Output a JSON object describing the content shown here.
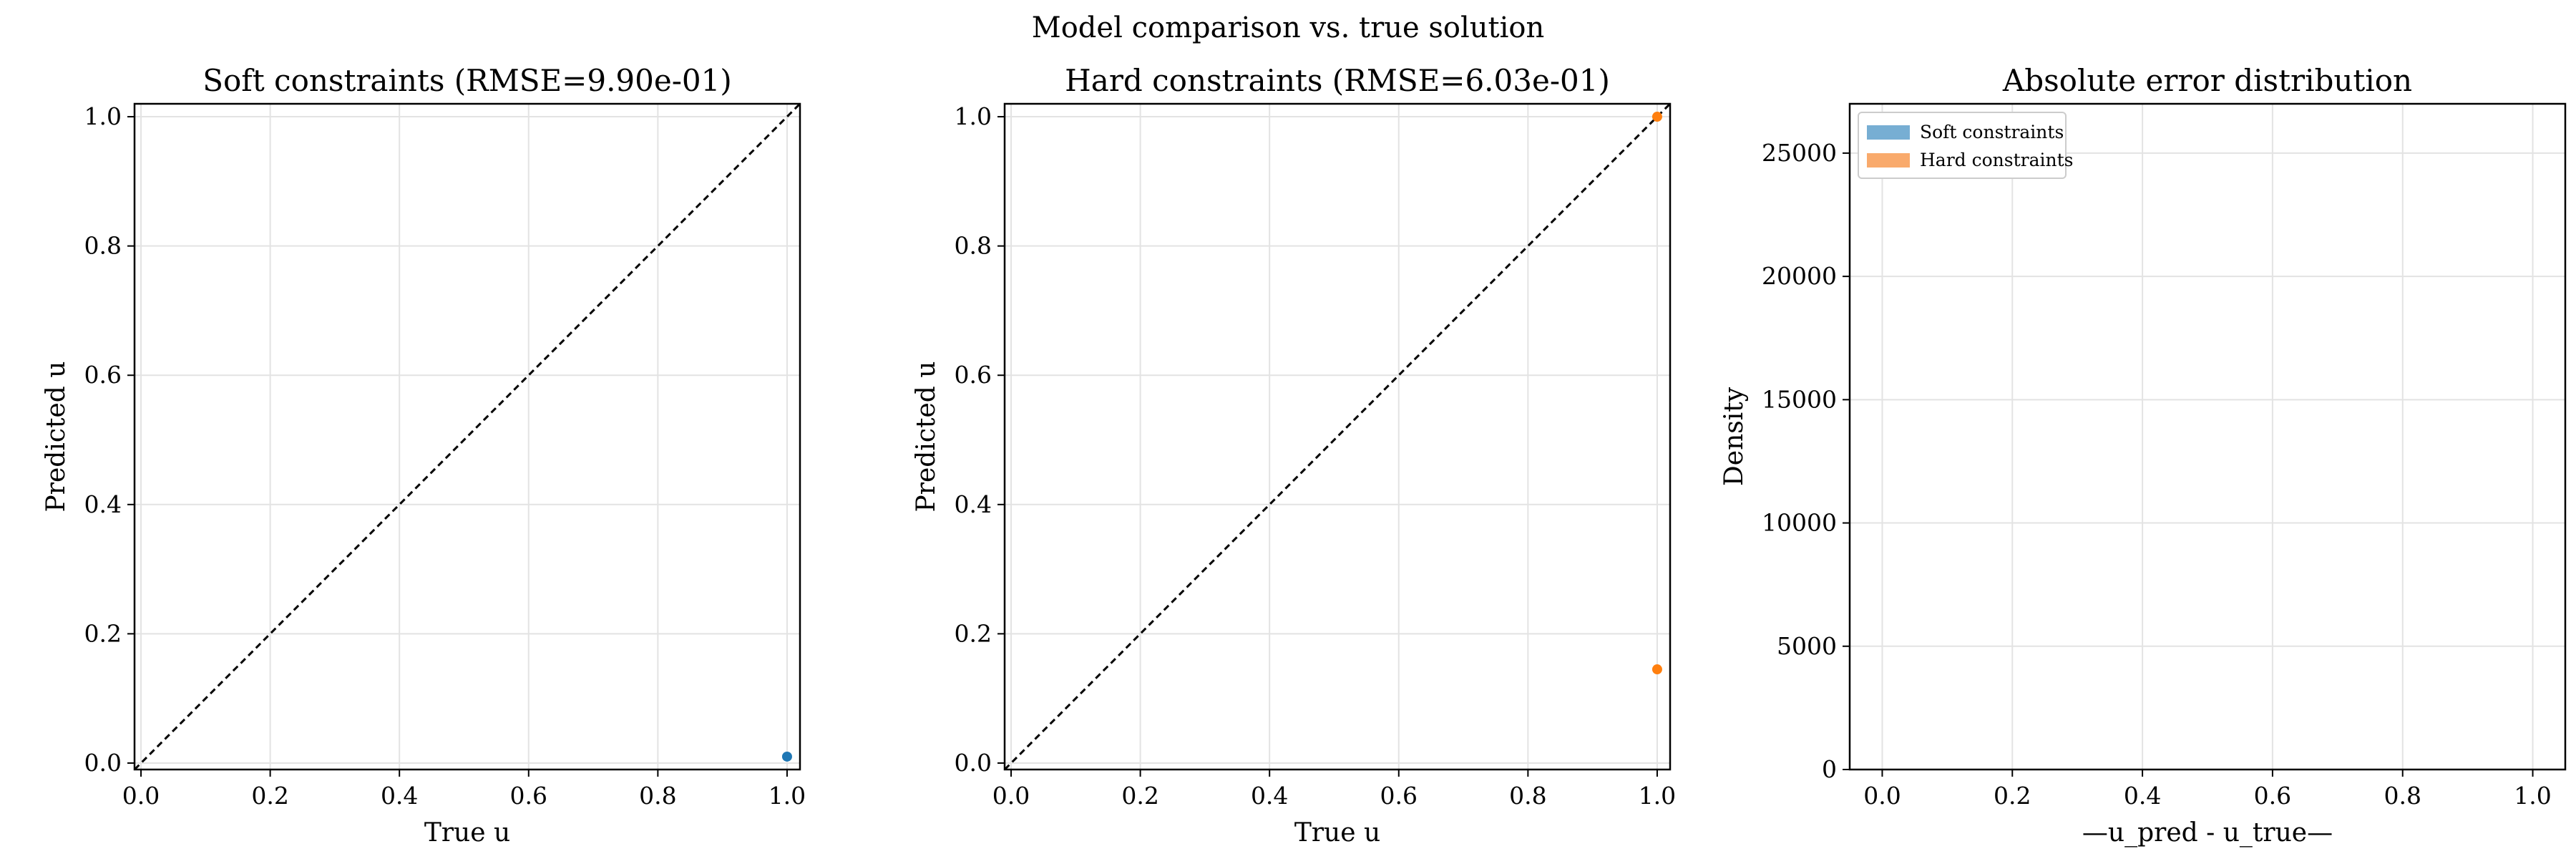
{
  "figure": {
    "suptitle": "Model comparison vs. true solution"
  },
  "chart_data": [
    {
      "type": "scatter",
      "title": "Soft constraints (RMSE=9.90e-01)",
      "xlabel": "True u",
      "ylabel": "Predicted u",
      "xlim": [
        -0.01,
        1.02
      ],
      "ylim": [
        -0.01,
        1.02
      ],
      "xticks": [
        "0.0",
        "0.2",
        "0.4",
        "0.6",
        "0.8",
        "1.0"
      ],
      "yticks": [
        "0.0",
        "0.2",
        "0.4",
        "0.6",
        "0.8",
        "1.0"
      ],
      "grid": true,
      "reference_line": "identity",
      "series": [
        {
          "color": "#1f77b4",
          "points": [
            [
              1.0,
              0.01
            ]
          ]
        }
      ]
    },
    {
      "type": "scatter",
      "title": "Hard constraints (RMSE=6.03e-01)",
      "xlabel": "True u",
      "ylabel": "Predicted u",
      "xlim": [
        -0.01,
        1.02
      ],
      "ylim": [
        -0.01,
        1.02
      ],
      "xticks": [
        "0.0",
        "0.2",
        "0.4",
        "0.6",
        "0.8",
        "1.0"
      ],
      "yticks": [
        "0.0",
        "0.2",
        "0.4",
        "0.6",
        "0.8",
        "1.0"
      ],
      "grid": true,
      "reference_line": "identity",
      "series": [
        {
          "color": "#ff7f0e",
          "points": [
            [
              1.0,
              1.0
            ],
            [
              1.0,
              0.145
            ]
          ]
        }
      ]
    },
    {
      "type": "bar",
      "subtype": "histogram",
      "title": "Absolute error distribution",
      "xlabel": "—u_pred - u_true—",
      "ylabel": "Density",
      "xlim": [
        -0.05,
        1.05
      ],
      "ylim": [
        0,
        27000
      ],
      "xticks": [
        "0.0",
        "0.2",
        "0.4",
        "0.6",
        "0.8",
        "1.0"
      ],
      "yticks": [
        "0",
        "5000",
        "10000",
        "15000",
        "20000",
        "25000"
      ],
      "grid": true,
      "legend_position": "upper-left",
      "series": [
        {
          "name": "Soft constraints",
          "color": "#77aed3",
          "values": []
        },
        {
          "name": "Hard constraints",
          "color": "#f9aa6c",
          "values": []
        }
      ]
    }
  ]
}
